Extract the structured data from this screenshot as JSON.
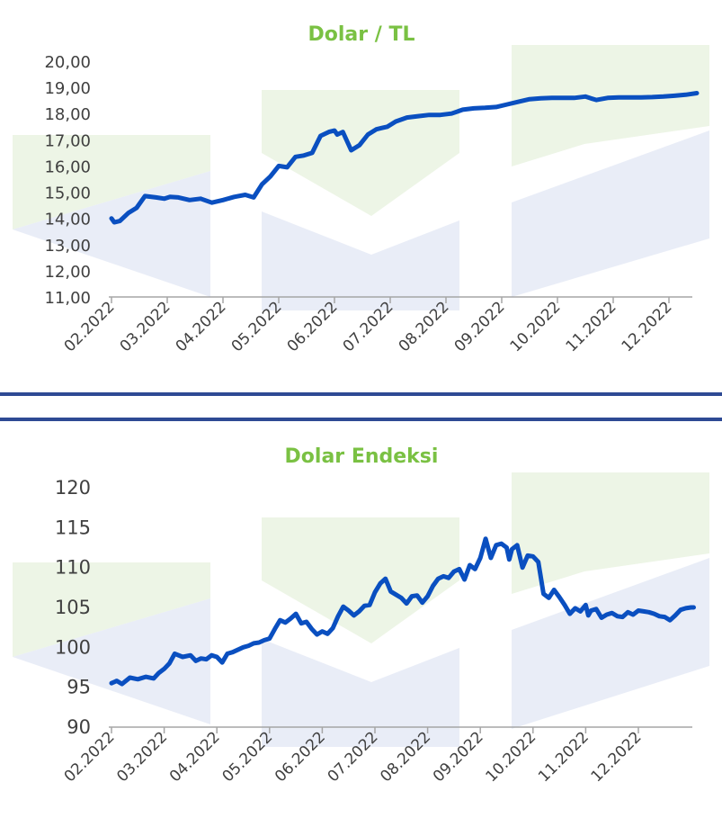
{
  "colors": {
    "title": "#7ac143",
    "line": "#0a4fc0",
    "axis": "#a6a6a6",
    "divider": "#2e4a94",
    "watermark_green": "#edf5e6",
    "watermark_blue": "#e3e8f5"
  },
  "chart_data": [
    {
      "type": "line",
      "title": "Dolar / TL",
      "xlabel": "",
      "ylabel": "",
      "ylim": [
        11,
        20
      ],
      "y_ticks": [
        "20,00",
        "19,00",
        "18,00",
        "17,00",
        "16,00",
        "15,00",
        "14,00",
        "13,00",
        "12,00",
        "11,00"
      ],
      "x_ticks": [
        "02.2022",
        "03.2022",
        "04.2022",
        "05.2022",
        "06.2022",
        "07.2022",
        "08.2022",
        "09.2022",
        "10.2022",
        "11.2022",
        "12.2022"
      ],
      "grid": false,
      "series": [
        {
          "x": [
            0.0,
            0.05,
            0.15,
            0.3,
            0.45,
            0.6,
            0.8,
            0.95,
            1.05,
            1.2,
            1.4,
            1.6,
            1.8,
            2.0,
            2.2,
            2.4,
            2.55,
            2.7,
            2.85,
            3.0,
            3.15,
            3.3,
            3.45,
            3.6,
            3.75,
            3.9,
            4.0,
            4.05,
            4.15,
            4.3,
            4.45,
            4.6,
            4.75,
            4.85,
            4.95,
            5.1,
            5.3,
            5.5,
            5.7,
            5.9,
            6.1,
            6.3,
            6.5,
            6.7,
            6.9,
            7.1,
            7.3,
            7.5,
            7.7,
            7.9,
            8.1,
            8.3,
            8.5,
            8.6,
            8.7,
            8.9,
            9.1,
            9.3,
            9.5,
            9.7,
            9.9,
            10.1,
            10.3,
            10.5
          ],
          "values": [
            14.0,
            13.85,
            13.9,
            14.2,
            14.4,
            14.85,
            14.8,
            14.75,
            14.82,
            14.8,
            14.7,
            14.75,
            14.6,
            14.7,
            14.82,
            14.9,
            14.8,
            15.3,
            15.6,
            16.0,
            15.95,
            16.35,
            16.4,
            16.5,
            17.15,
            17.3,
            17.35,
            17.2,
            17.3,
            16.6,
            16.8,
            17.2,
            17.4,
            17.45,
            17.5,
            17.7,
            17.85,
            17.9,
            17.95,
            17.95,
            18.0,
            18.15,
            18.2,
            18.22,
            18.25,
            18.35,
            18.45,
            18.55,
            18.58,
            18.6,
            18.6,
            18.6,
            18.65,
            18.58,
            18.52,
            18.6,
            18.62,
            18.62,
            18.62,
            18.63,
            18.65,
            18.68,
            18.72,
            18.78
          ]
        }
      ]
    },
    {
      "type": "line",
      "title": "Dolar Endeksi",
      "xlabel": "",
      "ylabel": "",
      "ylim": [
        90,
        120
      ],
      "y_ticks": [
        "120",
        "115",
        "110",
        "105",
        "100",
        "95",
        "90"
      ],
      "x_ticks": [
        "02.2022",
        "03.2022",
        "04.2022",
        "05.2022",
        "06.2022",
        "07.2022",
        "08.2022",
        "09.2022",
        "10.2022",
        "11.2022",
        "12.2022"
      ],
      "grid": false,
      "series": [
        {
          "x": [
            0.0,
            0.1,
            0.2,
            0.35,
            0.5,
            0.65,
            0.8,
            0.9,
            1.0,
            1.1,
            1.2,
            1.35,
            1.5,
            1.6,
            1.7,
            1.8,
            1.9,
            2.0,
            2.1,
            2.2,
            2.3,
            2.5,
            2.6,
            2.7,
            2.8,
            2.9,
            3.0,
            3.1,
            3.2,
            3.3,
            3.4,
            3.5,
            3.6,
            3.7,
            3.8,
            3.9,
            4.0,
            4.1,
            4.2,
            4.3,
            4.4,
            4.5,
            4.6,
            4.7,
            4.8,
            4.9,
            5.0,
            5.1,
            5.2,
            5.3,
            5.4,
            5.5,
            5.6,
            5.7,
            5.8,
            5.9,
            6.0,
            6.1,
            6.2,
            6.3,
            6.4,
            6.5,
            6.6,
            6.7,
            6.8,
            6.9,
            7.0,
            7.1,
            7.2,
            7.3,
            7.4,
            7.5,
            7.55,
            7.6,
            7.7,
            7.8,
            7.9,
            8.0,
            8.1,
            8.2,
            8.3,
            8.4,
            8.5,
            8.6,
            8.7,
            8.8,
            8.9,
            9.0,
            9.05,
            9.1,
            9.2,
            9.3,
            9.4,
            9.5,
            9.6,
            9.7,
            9.8,
            9.9,
            10.0,
            10.1,
            10.2,
            10.3,
            10.4,
            10.5,
            10.6,
            10.7,
            10.8,
            10.9,
            11.0,
            11.05
          ],
          "values": [
            95.5,
            95.8,
            95.4,
            96.2,
            96.0,
            96.3,
            96.1,
            96.8,
            97.3,
            98.0,
            99.2,
            98.8,
            99.0,
            98.3,
            98.6,
            98.5,
            99.0,
            98.8,
            98.1,
            99.2,
            99.4,
            100.0,
            100.2,
            100.5,
            100.6,
            100.9,
            101.1,
            102.3,
            103.4,
            103.1,
            103.6,
            104.2,
            103.0,
            103.2,
            102.3,
            101.6,
            102.0,
            101.7,
            102.4,
            103.9,
            105.1,
            104.6,
            104.0,
            104.5,
            105.2,
            105.3,
            106.9,
            108.0,
            108.6,
            107.0,
            106.6,
            106.2,
            105.5,
            106.4,
            106.5,
            105.6,
            106.4,
            107.7,
            108.6,
            108.9,
            108.7,
            109.5,
            109.8,
            108.5,
            110.3,
            109.8,
            111.2,
            113.6,
            111.2,
            112.8,
            113.0,
            112.5,
            111.0,
            112.3,
            112.8,
            110.0,
            111.5,
            111.4,
            110.7,
            106.7,
            106.2,
            107.2,
            106.3,
            105.3,
            104.2,
            104.9,
            104.5,
            105.3,
            104.0,
            104.6,
            104.8,
            103.7,
            104.1,
            104.3,
            103.9,
            103.8,
            104.4,
            104.1,
            104.6,
            104.5,
            104.4,
            104.2,
            103.9,
            103.8,
            103.4,
            104.0,
            104.7,
            104.9,
            105.0,
            105.0
          ]
        }
      ]
    }
  ]
}
